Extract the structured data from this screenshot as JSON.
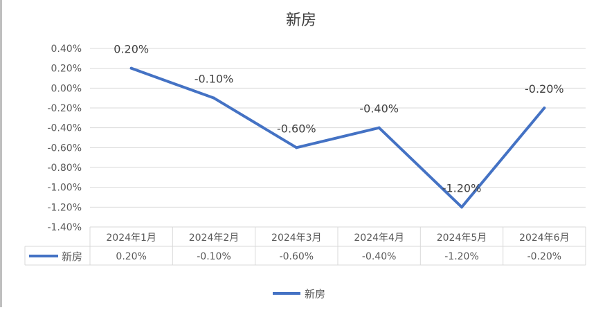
{
  "chart_data": {
    "type": "line",
    "title": "新房",
    "categories": [
      "2024年1月",
      "2024年2月",
      "2024年3月",
      "2024年4月",
      "2024年5月",
      "2024年6月"
    ],
    "series": [
      {
        "name": "新房",
        "values": [
          0.2,
          -0.1,
          -0.6,
          -0.4,
          -1.2,
          -0.2
        ],
        "labels": [
          "0.20%",
          "-0.10%",
          "-0.60%",
          "-0.40%",
          "-1.20%",
          "-0.20%"
        ],
        "color": "#4472c4"
      }
    ],
    "y_ticks": [
      "0.40%",
      "0.20%",
      "0.00%",
      "-0.20%",
      "-0.40%",
      "-0.60%",
      "-0.80%",
      "-1.00%",
      "-1.20%",
      "-1.40%"
    ],
    "ylim": [
      -1.4,
      0.4
    ],
    "grid": true,
    "data_table": true,
    "legend": "bottom",
    "xlabel": "",
    "ylabel": ""
  }
}
